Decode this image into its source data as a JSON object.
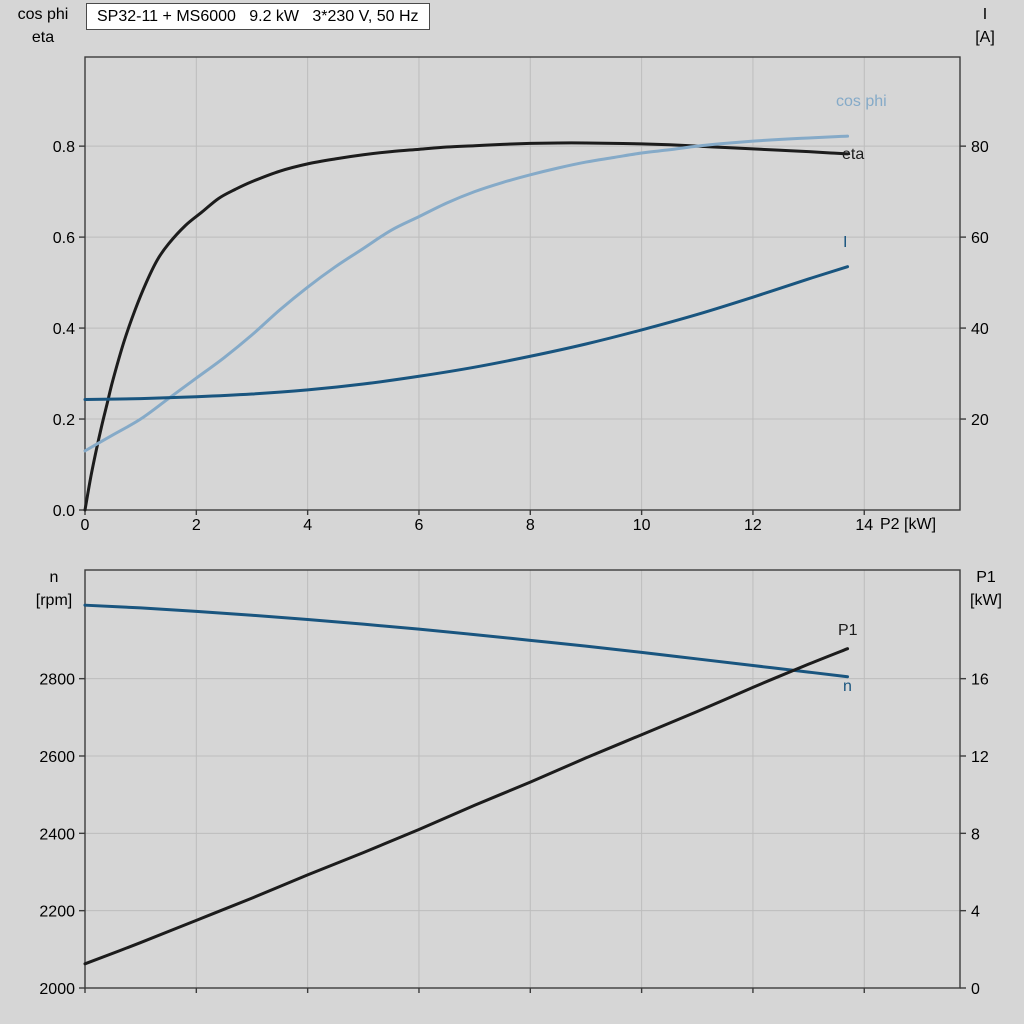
{
  "title_box": {
    "text": "SP32-11 + MS6000   9.2 kW   3*230 V, 50 Hz"
  },
  "colors": {
    "background": "#d6d6d6",
    "grid": "#bdbdbd",
    "frame": "#3c3c3c",
    "text": "#000000",
    "eta_p1": "#1c1c1c",
    "cos_phi": "#85aac8",
    "current_n": "#19557f"
  },
  "chart_data": [
    {
      "type": "line",
      "name": "motor-performance-top",
      "x_axis_label": "P2 [kW]",
      "left_axis_label": [
        "cos phi",
        "eta"
      ],
      "right_axis_label": [
        "I",
        "[A]"
      ],
      "xlim": [
        0,
        15.72
      ],
      "ylim_left": [
        0,
        0.996
      ],
      "ylim_right": [
        0,
        99.6
      ],
      "grid": true,
      "show_x_labels": true,
      "x_ticks": [
        [
          0,
          "0"
        ],
        [
          2,
          "2"
        ],
        [
          4,
          "4"
        ],
        [
          6,
          "6"
        ],
        [
          8,
          "8"
        ],
        [
          10,
          "10"
        ],
        [
          12,
          "12"
        ],
        [
          14,
          "14"
        ]
      ],
      "left_ticks": [
        [
          0,
          "0.0"
        ],
        [
          0.2,
          "0.2"
        ],
        [
          0.4,
          "0.4"
        ],
        [
          0.6,
          "0.6"
        ],
        [
          0.8,
          "0.8"
        ]
      ],
      "right_ticks": [
        [
          20,
          "20"
        ],
        [
          40,
          "40"
        ],
        [
          60,
          "60"
        ],
        [
          80,
          "80"
        ]
      ],
      "series": [
        {
          "name": "eta",
          "axis": "left",
          "color": "#1c1c1c",
          "points": [
            [
              0,
              0
            ],
            [
              0.1,
              0.07
            ],
            [
              0.2,
              0.13
            ],
            [
              0.3,
              0.185
            ],
            [
              0.4,
              0.235
            ],
            [
              0.5,
              0.285
            ],
            [
              0.7,
              0.37
            ],
            [
              0.9,
              0.44
            ],
            [
              1.1,
              0.5
            ],
            [
              1.3,
              0.55
            ],
            [
              1.5,
              0.585
            ],
            [
              1.8,
              0.625
            ],
            [
              2.1,
              0.655
            ],
            [
              2.4,
              0.685
            ],
            [
              2.7,
              0.705
            ],
            [
              3.0,
              0.722
            ],
            [
              3.5,
              0.745
            ],
            [
              4,
              0.761
            ],
            [
              4.5,
              0.772
            ],
            [
              5,
              0.781
            ],
            [
              5.5,
              0.788
            ],
            [
              6,
              0.793
            ],
            [
              6.5,
              0.798
            ],
            [
              7,
              0.801
            ],
            [
              7.5,
              0.804
            ],
            [
              8,
              0.806
            ],
            [
              8.5,
              0.807
            ],
            [
              9,
              0.807
            ],
            [
              9.5,
              0.806
            ],
            [
              10,
              0.805
            ],
            [
              10.5,
              0.803
            ],
            [
              11,
              0.8
            ],
            [
              11.5,
              0.797
            ],
            [
              12,
              0.794
            ],
            [
              12.5,
              0.791
            ],
            [
              13,
              0.788
            ],
            [
              13.4,
              0.785
            ],
            [
              13.7,
              0.783
            ]
          ]
        },
        {
          "name": "cos phi",
          "axis": "left",
          "color": "#85aac8",
          "points": [
            [
              0,
              0.13
            ],
            [
              0.5,
              0.165
            ],
            [
              1,
              0.2
            ],
            [
              1.5,
              0.245
            ],
            [
              2,
              0.29
            ],
            [
              2.5,
              0.335
            ],
            [
              3,
              0.385
            ],
            [
              3.5,
              0.44
            ],
            [
              4,
              0.49
            ],
            [
              4.5,
              0.535
            ],
            [
              5,
              0.575
            ],
            [
              5.5,
              0.615
            ],
            [
              6,
              0.645
            ],
            [
              6.5,
              0.675
            ],
            [
              7,
              0.7
            ],
            [
              7.5,
              0.72
            ],
            [
              8,
              0.737
            ],
            [
              8.5,
              0.752
            ],
            [
              9,
              0.765
            ],
            [
              9.5,
              0.775
            ],
            [
              10,
              0.785
            ],
            [
              10.5,
              0.792
            ],
            [
              11,
              0.8
            ],
            [
              11.5,
              0.806
            ],
            [
              12,
              0.811
            ],
            [
              12.5,
              0.815
            ],
            [
              13,
              0.818
            ],
            [
              13.5,
              0.821
            ],
            [
              13.7,
              0.822
            ]
          ]
        },
        {
          "name": "I",
          "axis": "right",
          "color": "#19557f",
          "points": [
            [
              0,
              24.3
            ],
            [
              1,
              24.5
            ],
            [
              2,
              24.9
            ],
            [
              3,
              25.5
            ],
            [
              4,
              26.4
            ],
            [
              5,
              27.7
            ],
            [
              6,
              29.4
            ],
            [
              7,
              31.4
            ],
            [
              8,
              33.8
            ],
            [
              9,
              36.5
            ],
            [
              10,
              39.6
            ],
            [
              11,
              43.0
            ],
            [
              12,
              46.8
            ],
            [
              13,
              50.8
            ],
            [
              13.7,
              53.5
            ]
          ]
        }
      ]
    },
    {
      "type": "line",
      "name": "motor-performance-bottom",
      "x_axis_label": "",
      "left_axis_label": [
        "n",
        "[rpm]"
      ],
      "right_axis_label": [
        "P1",
        "[kW]"
      ],
      "xlim": [
        0,
        15.72
      ],
      "ylim_left": [
        2000,
        3081
      ],
      "ylim_right": [
        0,
        21.62
      ],
      "grid": true,
      "show_x_labels": false,
      "x_ticks": [
        [
          0,
          "0"
        ],
        [
          2,
          "2"
        ],
        [
          4,
          "4"
        ],
        [
          6,
          "6"
        ],
        [
          8,
          "8"
        ],
        [
          10,
          "10"
        ],
        [
          12,
          "12"
        ],
        [
          14,
          "14"
        ]
      ],
      "left_ticks": [
        [
          2000,
          "2000"
        ],
        [
          2200,
          "2200"
        ],
        [
          2400,
          "2400"
        ],
        [
          2600,
          "2600"
        ],
        [
          2800,
          "2800"
        ]
      ],
      "right_ticks": [
        [
          0,
          "0"
        ],
        [
          4,
          "4"
        ],
        [
          8,
          "8"
        ],
        [
          12,
          "12"
        ],
        [
          16,
          "16"
        ]
      ],
      "series": [
        {
          "name": "n",
          "axis": "left",
          "color": "#19557f",
          "points": [
            [
              0,
              2990
            ],
            [
              1,
              2983
            ],
            [
              2,
              2974
            ],
            [
              3,
              2964
            ],
            [
              4,
              2953
            ],
            [
              5,
              2941
            ],
            [
              6,
              2928
            ],
            [
              7,
              2914
            ],
            [
              8,
              2899
            ],
            [
              9,
              2884
            ],
            [
              10,
              2868
            ],
            [
              11,
              2851
            ],
            [
              12,
              2834
            ],
            [
              13,
              2817
            ],
            [
              13.7,
              2805
            ]
          ]
        },
        {
          "name": "P1",
          "axis": "right",
          "color": "#1c1c1c",
          "points": [
            [
              0,
              1.25
            ],
            [
              1,
              2.35
            ],
            [
              2,
              3.5
            ],
            [
              3,
              4.65
            ],
            [
              4,
              5.85
            ],
            [
              5,
              7.0
            ],
            [
              6,
              8.2
            ],
            [
              7,
              9.45
            ],
            [
              8,
              10.65
            ],
            [
              9,
              11.9
            ],
            [
              10,
              13.1
            ],
            [
              11,
              14.3
            ],
            [
              12,
              15.55
            ],
            [
              13,
              16.75
            ],
            [
              13.7,
              17.55
            ]
          ]
        }
      ]
    }
  ]
}
